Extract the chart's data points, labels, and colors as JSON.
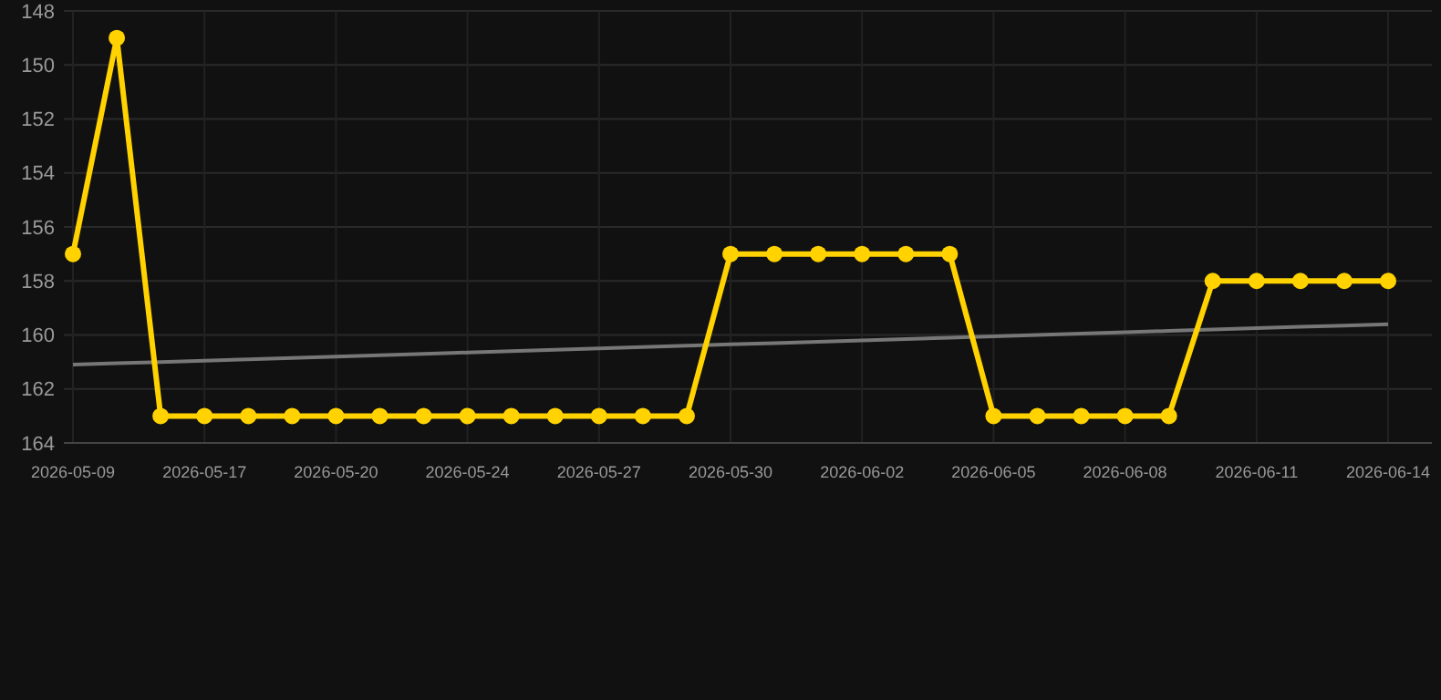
{
  "chart_data": {
    "type": "line",
    "categories": [
      "2026-05-09",
      null,
      null,
      "2026-05-17",
      null,
      null,
      "2026-05-20",
      null,
      null,
      "2026-05-24",
      null,
      null,
      "2026-05-27",
      null,
      null,
      "2026-05-30",
      null,
      null,
      "2026-06-02",
      null,
      null,
      "2026-06-05",
      null,
      null,
      "2026-06-08",
      null,
      null,
      "2026-06-11",
      null,
      null,
      "2026-06-14"
    ],
    "series": [
      {
        "color": "#ffd200",
        "marker": "circle",
        "values": [
          157,
          149,
          163,
          163,
          163,
          163,
          163,
          163,
          163,
          163,
          163,
          163,
          163,
          163,
          163,
          157,
          157,
          157,
          157,
          157,
          157,
          163,
          163,
          163,
          163,
          163,
          158,
          158,
          158,
          158,
          158
        ]
      },
      {
        "color": "#777777",
        "marker": "none",
        "values": [
          161.1,
          161.05,
          161,
          160.95,
          160.9,
          160.85,
          160.8,
          160.75,
          160.7,
          160.65,
          160.6,
          160.55,
          160.5,
          160.45,
          160.4,
          160.35,
          160.3,
          160.25,
          160.2,
          160.15,
          160.1,
          160.05,
          160,
          159.95,
          159.9,
          159.85,
          159.8,
          159.75,
          159.7,
          159.65,
          159.6
        ]
      }
    ],
    "ylim": [
      164,
      148
    ],
    "yticks": [
      148,
      150,
      152,
      154,
      156,
      158,
      160,
      162,
      164
    ],
    "grid": true
  }
}
